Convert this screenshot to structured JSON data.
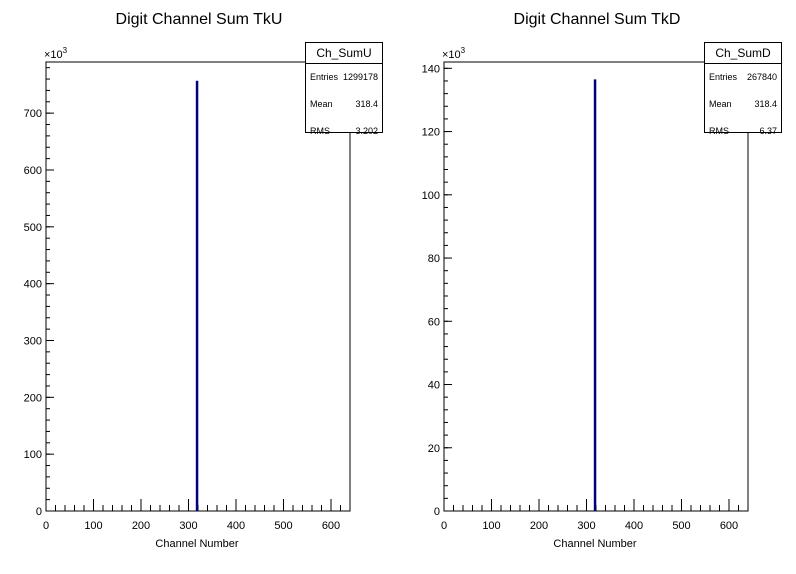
{
  "chart_data": [
    {
      "type": "histogram",
      "title": "Digit Channel Sum TkU",
      "xlabel": "Channel Number",
      "ylabel": "",
      "y_multiplier": "×10",
      "y_multiplier_exp": "3",
      "xlim": [
        0,
        640
      ],
      "ylim": [
        0,
        790
      ],
      "x_ticks": [
        0,
        100,
        200,
        300,
        400,
        500,
        600
      ],
      "x_ticklabels": [
        "0",
        "100",
        "200",
        "300",
        "400",
        "500",
        "600"
      ],
      "y_ticks": [
        0,
        100,
        200,
        300,
        400,
        500,
        600,
        700
      ],
      "y_ticklabels": [
        "0",
        "100",
        "200",
        "300",
        "400",
        "500",
        "600",
        "700"
      ],
      "x": [
        318
      ],
      "values": [
        757
      ],
      "line_color": "#000080",
      "stats": {
        "name": "Ch_SumU",
        "rows": [
          {
            "label": "Entries",
            "value": "1299178"
          },
          {
            "label": "Mean",
            "value": "318.4"
          },
          {
            "label": "RMS",
            "value": "3.202"
          }
        ]
      }
    },
    {
      "type": "histogram",
      "title": "Digit Channel Sum TkD",
      "xlabel": "Channel Number",
      "ylabel": "",
      "y_multiplier": "×10",
      "y_multiplier_exp": "3",
      "xlim": [
        0,
        640
      ],
      "ylim": [
        0,
        142
      ],
      "x_ticks": [
        0,
        100,
        200,
        300,
        400,
        500,
        600
      ],
      "x_ticklabels": [
        "0",
        "100",
        "200",
        "300",
        "400",
        "500",
        "600"
      ],
      "y_ticks": [
        0,
        20,
        40,
        60,
        80,
        100,
        120,
        140
      ],
      "y_ticklabels": [
        "0",
        "20",
        "40",
        "60",
        "80",
        "100",
        "120",
        "140"
      ],
      "x": [
        318
      ],
      "values": [
        136.5
      ],
      "line_color": "#000080",
      "stats": {
        "name": "Ch_SumD",
        "rows": [
          {
            "label": "Entries",
            "value": "267840"
          },
          {
            "label": "Mean",
            "value": "318.4"
          },
          {
            "label": "RMS",
            "value": "6.37"
          }
        ]
      }
    }
  ]
}
